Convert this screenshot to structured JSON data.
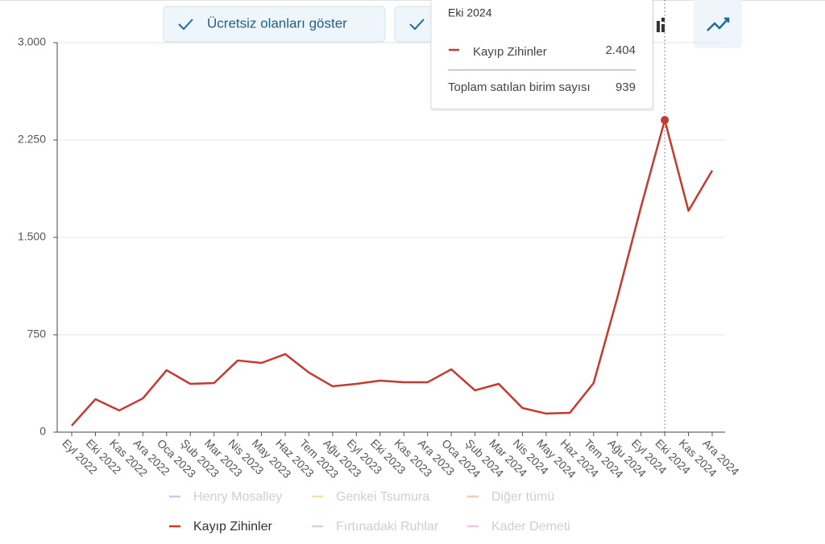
{
  "chart_data": {
    "type": "line",
    "buttons": [
      "Ücretsiz olanları göster"
    ],
    "categories": [
      "Eyl 2022",
      "Eki 2022",
      "Kas 2022",
      "Ara 2022",
      "Oca 2023",
      "Şub 2023",
      "Mar 2023",
      "Nis 2023",
      "May 2023",
      "Haz 2023",
      "Tem 2023",
      "Ağu 2023",
      "Eyl 2023",
      "Eki 2023",
      "Kas 2023",
      "Ara 2023",
      "Oca 2024",
      "Şub 2024",
      "Mar 2024",
      "Nis 2024",
      "May 2024",
      "Haz 2024",
      "Tem 2024",
      "Ağu 2024",
      "Eyl 2024",
      "Eki 2024",
      "Kas 2024",
      "Ara 2024"
    ],
    "series": [
      {
        "name": "Kayıp Zihinler",
        "color": "#c5392e",
        "values": [
          50,
          254,
          167,
          260,
          477,
          372,
          378,
          552,
          533,
          601,
          459,
          353,
          372,
          397,
          384,
          384,
          484,
          322,
          372,
          186,
          143,
          149,
          378,
          1035,
          1736,
          2404,
          1705,
          2015
        ]
      }
    ],
    "legend_hidden": [
      {
        "name": "Henry Mosalley",
        "color": "#b9d3ef"
      },
      {
        "name": "Genkei Tsumura",
        "color": "#f5e0a8"
      },
      {
        "name": "Diğer tümü",
        "color": "#f5cda9"
      },
      {
        "name": "Fırtınadaki Ruhlar",
        "color": "#c6dcd4"
      },
      {
        "name": "Kader Demeti",
        "color": "#efc2e6"
      }
    ],
    "ylim": [
      0,
      3000
    ],
    "yticks": [
      0,
      750,
      {
        "value": 1500,
        "label": "1.500"
      },
      {
        "value": 2250,
        "label": "2.250"
      },
      {
        "value": 3000,
        "label": "3.000"
      }
    ],
    "grid": true,
    "tooltip": {
      "index": 25,
      "value_label": "2.404",
      "total_label": "Toplam satılan birim sayısı",
      "total": 939
    }
  }
}
